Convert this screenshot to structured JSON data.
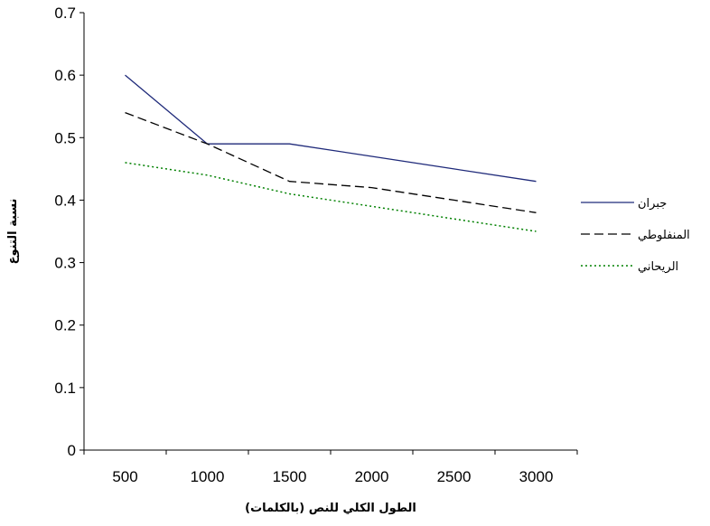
{
  "chart_data": {
    "type": "line",
    "title": "",
    "xlabel": "الطول الكلي للنص (بالكلمات)",
    "ylabel": "نسبة التنوع",
    "x": [
      500,
      1000,
      1500,
      2000,
      2500,
      3000
    ],
    "x_tick_labels": [
      "500",
      "1000",
      "1500",
      "2000",
      "2500",
      "3000"
    ],
    "y_tick_labels": [
      "0",
      "0.1",
      "0.2",
      "0.3",
      "0.4",
      "0.5",
      "0.6",
      "0.7"
    ],
    "ylim": [
      0,
      0.7
    ],
    "grid": false,
    "legend_position": "right",
    "series": [
      {
        "name": "جبران",
        "values": [
          0.6,
          0.49,
          0.49,
          0.47,
          0.45,
          0.43
        ],
        "color": "#1f2a7a",
        "style": "solid"
      },
      {
        "name": "المنفلوطي",
        "values": [
          0.54,
          0.49,
          0.43,
          0.42,
          0.4,
          0.38
        ],
        "color": "#000000",
        "style": "dashed"
      },
      {
        "name": "الريحاني",
        "values": [
          0.46,
          0.44,
          0.41,
          0.39,
          0.37,
          0.35
        ],
        "color": "#008000",
        "style": "dotted"
      }
    ]
  }
}
